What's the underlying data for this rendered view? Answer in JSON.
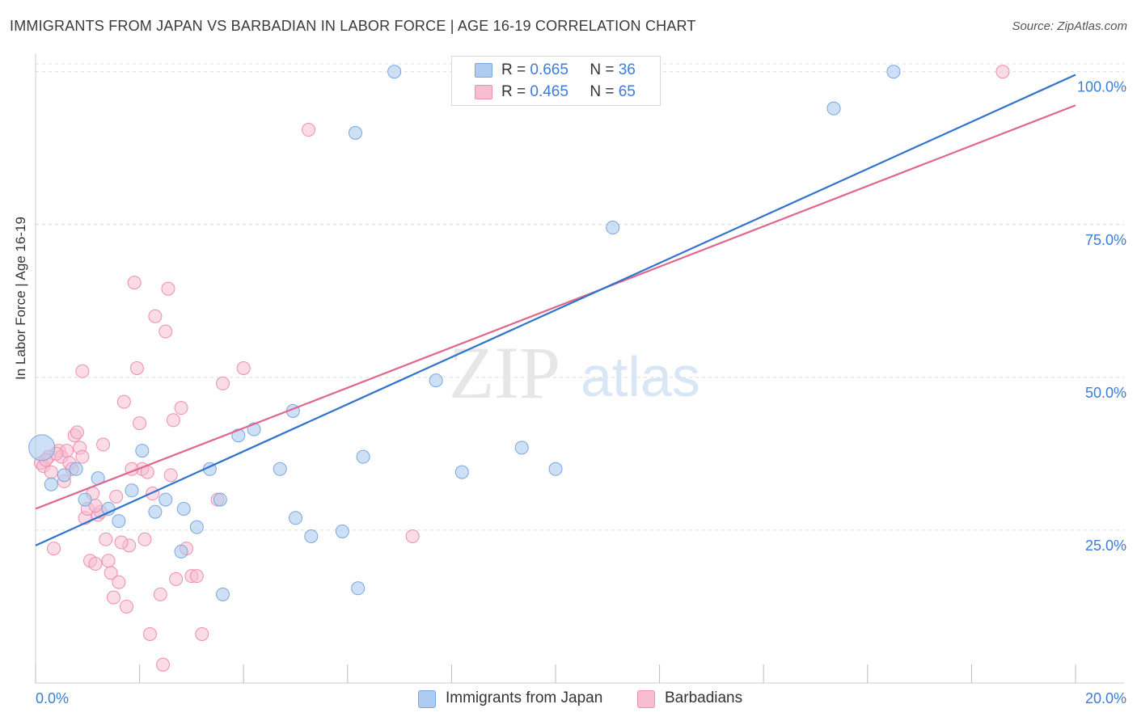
{
  "title": "IMMIGRANTS FROM JAPAN VS BARBADIAN IN LABOR FORCE | AGE 16-19 CORRELATION CHART",
  "source": "Source: ZipAtlas.com",
  "watermark": {
    "zip": "ZIP",
    "atlas": "atlas"
  },
  "legend": {
    "series": [
      {
        "r_label": "R =",
        "r_value": "0.665",
        "n_label": "N =",
        "n_value": "36"
      },
      {
        "r_label": "R =",
        "r_value": "0.465",
        "n_label": "N =",
        "n_value": "65"
      }
    ]
  },
  "bottom_legend": [
    "Immigrants from Japan",
    "Barbadians"
  ],
  "colors": {
    "japan_fill": "#aecbf0",
    "japan_stroke": "#7aa6e0",
    "japan_line": "#2f73cc",
    "barb_fill": "#f8bdd0",
    "barb_stroke": "#ec8fb0",
    "barb_line": "#e0668f",
    "tick_label": "#3b7dd8",
    "grid": "#dcdcdc"
  },
  "chart_data": {
    "type": "scatter",
    "title": "IMMIGRANTS FROM JAPAN VS BARBADIAN IN LABOR FORCE | AGE 16-19 CORRELATION CHART",
    "xlabel": "",
    "ylabel": "In Labor Force | Age 16-19",
    "xlim": [
      0,
      20
    ],
    "ylim": [
      0,
      103
    ],
    "x_ticks": [
      "0.0%",
      "20.0%"
    ],
    "y_ticks": [
      {
        "value": 25,
        "label": "25.0%"
      },
      {
        "value": 50,
        "label": "50.0%"
      },
      {
        "value": 75,
        "label": "75.0%"
      },
      {
        "value": 100,
        "label": "100.0%"
      }
    ],
    "series": [
      {
        "name": "Immigrants from Japan",
        "r": 0.665,
        "n": 36,
        "trend": {
          "x": [
            0,
            20
          ],
          "y": [
            22.5,
            99.5
          ]
        },
        "points": [
          {
            "x": 0.12,
            "y": 38.5,
            "big": true
          },
          {
            "x": 0.3,
            "y": 32.5
          },
          {
            "x": 0.55,
            "y": 34.0
          },
          {
            "x": 0.78,
            "y": 35.0
          },
          {
            "x": 0.95,
            "y": 30.0
          },
          {
            "x": 1.2,
            "y": 33.5
          },
          {
            "x": 1.4,
            "y": 28.5
          },
          {
            "x": 1.6,
            "y": 26.5
          },
          {
            "x": 1.85,
            "y": 31.5
          },
          {
            "x": 2.05,
            "y": 38.0
          },
          {
            "x": 2.3,
            "y": 28.0
          },
          {
            "x": 2.5,
            "y": 30.0
          },
          {
            "x": 2.85,
            "y": 28.5
          },
          {
            "x": 3.1,
            "y": 25.5
          },
          {
            "x": 3.35,
            "y": 35.0
          },
          {
            "x": 3.55,
            "y": 30.0
          },
          {
            "x": 3.9,
            "y": 40.5
          },
          {
            "x": 4.2,
            "y": 41.5
          },
          {
            "x": 4.7,
            "y": 35.0
          },
          {
            "x": 4.95,
            "y": 44.5
          },
          {
            "x": 5.0,
            "y": 27.0
          },
          {
            "x": 5.3,
            "y": 24.0
          },
          {
            "x": 5.9,
            "y": 24.8
          },
          {
            "x": 6.3,
            "y": 37.0
          },
          {
            "x": 6.2,
            "y": 15.5
          },
          {
            "x": 6.15,
            "y": 90.0
          },
          {
            "x": 6.9,
            "y": 100.0
          },
          {
            "x": 7.7,
            "y": 49.5
          },
          {
            "x": 8.2,
            "y": 34.5
          },
          {
            "x": 9.35,
            "y": 38.5
          },
          {
            "x": 10.0,
            "y": 35.0
          },
          {
            "x": 11.1,
            "y": 74.5
          },
          {
            "x": 15.35,
            "y": 94.0
          },
          {
            "x": 16.5,
            "y": 100.0
          },
          {
            "x": 2.8,
            "y": 21.5
          },
          {
            "x": 3.6,
            "y": 14.5
          }
        ]
      },
      {
        "name": "Barbadians",
        "r": 0.465,
        "n": 65,
        "trend": {
          "x": [
            0,
            20
          ],
          "y": [
            28.5,
            94.5
          ]
        },
        "points": [
          {
            "x": 0.1,
            "y": 36.0
          },
          {
            "x": 0.15,
            "y": 35.5
          },
          {
            "x": 0.25,
            "y": 37.0
          },
          {
            "x": 0.3,
            "y": 34.5
          },
          {
            "x": 0.35,
            "y": 22.0
          },
          {
            "x": 0.45,
            "y": 38.0
          },
          {
            "x": 0.5,
            "y": 37.0
          },
          {
            "x": 0.55,
            "y": 33.0
          },
          {
            "x": 0.6,
            "y": 38.0
          },
          {
            "x": 0.65,
            "y": 36.0
          },
          {
            "x": 0.75,
            "y": 40.5
          },
          {
            "x": 0.8,
            "y": 41.0
          },
          {
            "x": 0.85,
            "y": 38.5
          },
          {
            "x": 0.9,
            "y": 37.0
          },
          {
            "x": 0.95,
            "y": 27.0
          },
          {
            "x": 1.0,
            "y": 28.5
          },
          {
            "x": 1.05,
            "y": 20.0
          },
          {
            "x": 1.1,
            "y": 31.0
          },
          {
            "x": 1.15,
            "y": 19.5
          },
          {
            "x": 1.2,
            "y": 27.5
          },
          {
            "x": 1.25,
            "y": 28.0
          },
          {
            "x": 1.3,
            "y": 39.0
          },
          {
            "x": 1.35,
            "y": 23.5
          },
          {
            "x": 1.4,
            "y": 20.0
          },
          {
            "x": 1.45,
            "y": 18.0
          },
          {
            "x": 1.5,
            "y": 14.0
          },
          {
            "x": 1.55,
            "y": 30.5
          },
          {
            "x": 1.6,
            "y": 16.5
          },
          {
            "x": 1.7,
            "y": 46.0
          },
          {
            "x": 1.75,
            "y": 12.5
          },
          {
            "x": 1.8,
            "y": 22.5
          },
          {
            "x": 1.9,
            "y": 65.5
          },
          {
            "x": 1.95,
            "y": 51.5
          },
          {
            "x": 2.0,
            "y": 42.5
          },
          {
            "x": 2.05,
            "y": 35.0
          },
          {
            "x": 2.1,
            "y": 23.5
          },
          {
            "x": 2.15,
            "y": 34.5
          },
          {
            "x": 2.2,
            "y": 8.0
          },
          {
            "x": 2.3,
            "y": 60.0
          },
          {
            "x": 2.4,
            "y": 14.5
          },
          {
            "x": 2.45,
            "y": 3.0
          },
          {
            "x": 2.5,
            "y": 57.5
          },
          {
            "x": 2.55,
            "y": 64.5
          },
          {
            "x": 2.6,
            "y": 34.0
          },
          {
            "x": 2.65,
            "y": 43.0
          },
          {
            "x": 2.7,
            "y": 17.0
          },
          {
            "x": 2.8,
            "y": 45.0
          },
          {
            "x": 2.9,
            "y": 22.0
          },
          {
            "x": 3.0,
            "y": 17.5
          },
          {
            "x": 3.1,
            "y": 17.5
          },
          {
            "x": 3.2,
            "y": 8.0
          },
          {
            "x": 3.5,
            "y": 30.0
          },
          {
            "x": 3.6,
            "y": 49.0
          },
          {
            "x": 4.0,
            "y": 51.5
          },
          {
            "x": 5.25,
            "y": 90.5
          },
          {
            "x": 7.25,
            "y": 24.0
          },
          {
            "x": 18.6,
            "y": 100.0
          },
          {
            "x": 0.2,
            "y": 36.5
          },
          {
            "x": 0.4,
            "y": 37.5
          },
          {
            "x": 0.7,
            "y": 35.0
          },
          {
            "x": 1.15,
            "y": 29.0
          },
          {
            "x": 1.65,
            "y": 23.0
          },
          {
            "x": 0.9,
            "y": 51.0
          },
          {
            "x": 2.25,
            "y": 31.0
          },
          {
            "x": 1.85,
            "y": 35.0
          }
        ]
      }
    ]
  }
}
